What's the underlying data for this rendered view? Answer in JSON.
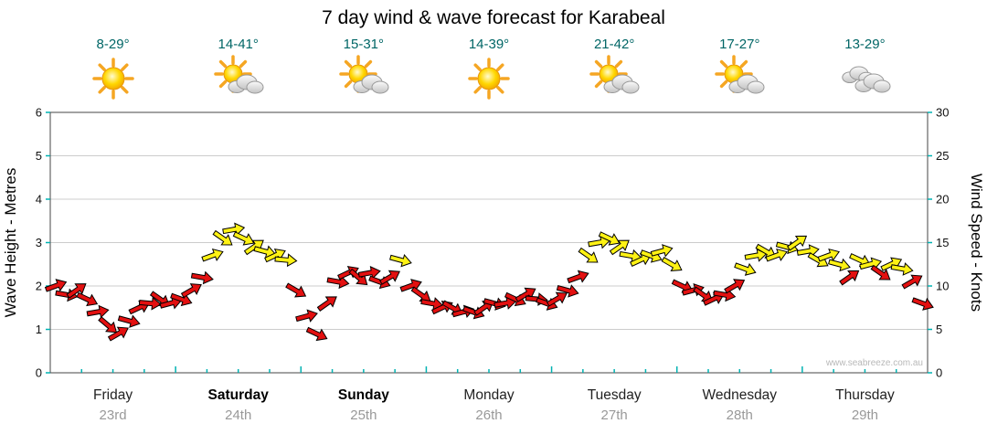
{
  "page": {
    "title": "7 day wind & wave forecast for Karabeal",
    "watermark": "www.seabreeze.com.au"
  },
  "chart_data": {
    "type": "scatter",
    "marker": "wind-direction-arrow",
    "title": "7 day wind & wave forecast for Karabeal",
    "left_axis": {
      "label": "Wave Height - Metres",
      "min": 0,
      "max": 6,
      "ticks": [
        0,
        1,
        2,
        3,
        4,
        5,
        6
      ]
    },
    "right_axis": {
      "label": "Wind Speed - Knots",
      "min": 0,
      "max": 30,
      "ticks": [
        0,
        5,
        10,
        15,
        20,
        25,
        30
      ]
    },
    "days": [
      {
        "name": "Friday",
        "date": "23rd",
        "bold": false,
        "temp_range": "8-29°",
        "icon": "sunny"
      },
      {
        "name": "Saturday",
        "date": "24th",
        "bold": true,
        "temp_range": "14-41°",
        "icon": "partly-cloudy"
      },
      {
        "name": "Sunday",
        "date": "25th",
        "bold": true,
        "temp_range": "15-31°",
        "icon": "partly-cloudy"
      },
      {
        "name": "Monday",
        "date": "26th",
        "bold": false,
        "temp_range": "14-39°",
        "icon": "sunny"
      },
      {
        "name": "Tuesday",
        "date": "27th",
        "bold": false,
        "temp_range": "21-42°",
        "icon": "partly-cloudy"
      },
      {
        "name": "Wednesday",
        "date": "28th",
        "bold": false,
        "temp_range": "17-27°",
        "icon": "partly-cloudy"
      },
      {
        "name": "Thursday",
        "date": "29th",
        "bold": false,
        "temp_range": "13-29°",
        "icon": "cloudy"
      }
    ],
    "points_per_day": 12,
    "n_points": 84,
    "series": [
      {
        "name": "Wind speed (knots)",
        "speeds": [
          10,
          9,
          9.5,
          8.5,
          7,
          5.5,
          4.5,
          6,
          7.5,
          8,
          8.5,
          8,
          8.5,
          9.5,
          11,
          13.5,
          15.5,
          16.5,
          15.5,
          14.5,
          14,
          13.5,
          13,
          9.5,
          6.5,
          4.5,
          8,
          10.5,
          11.5,
          11,
          11.5,
          10.5,
          11,
          13,
          10,
          9,
          8,
          7.5,
          7.5,
          7,
          7,
          7.5,
          8,
          8,
          8.5,
          9,
          8.5,
          8,
          8.5,
          9.5,
          11,
          13.5,
          15,
          15.5,
          14.5,
          13.5,
          13,
          13.5,
          14,
          12.5,
          10,
          9.5,
          9,
          8.5,
          9,
          10,
          12,
          13.5,
          14,
          13.5,
          14.5,
          15,
          14,
          13,
          13.5,
          12.5,
          11,
          13,
          12.5,
          11.5,
          12.5,
          12,
          10.5,
          8
        ],
        "directions_deg": [
          -20,
          10,
          -35,
          25,
          -10,
          40,
          -30,
          15,
          -25,
          5,
          35,
          -15,
          20,
          -30,
          10,
          -20,
          35,
          -10,
          25,
          -35,
          15,
          -25,
          5,
          30,
          -15,
          25,
          -35,
          10,
          -25,
          40,
          -10,
          20,
          -30,
          15,
          -20,
          35,
          10,
          -25,
          30,
          -15,
          20,
          -35,
          15,
          -10,
          25,
          -30,
          5,
          20,
          -30,
          15,
          -20,
          35,
          -10,
          25,
          -35,
          10,
          -25,
          20,
          -15,
          30,
          25,
          -15,
          35,
          -25,
          10,
          -30,
          20,
          -10,
          30,
          -20,
          15,
          -35,
          -10,
          30,
          -20,
          15,
          -35,
          25,
          -15,
          35,
          -25,
          10,
          -30,
          20
        ]
      }
    ],
    "colors": {
      "red_arrow": "#e31010",
      "yellow_arrow": "#fff214",
      "yellow_from_knots": 12,
      "grid": "#cccccc",
      "axis": "#444444",
      "tick": "#00b2b2",
      "temp_text": "#006666",
      "day_text": "#222222",
      "date_text": "#999999",
      "watermark_text": "#b8b8b8"
    }
  }
}
